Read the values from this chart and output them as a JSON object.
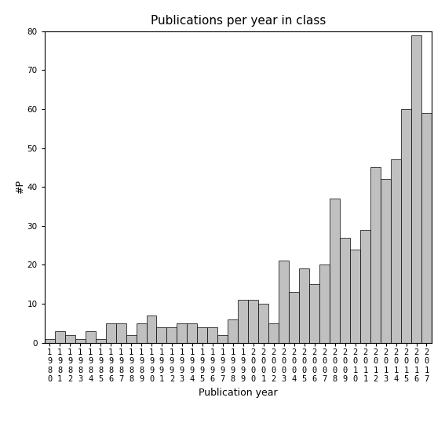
{
  "title": "Publications per year in class",
  "xlabel": "Publication year",
  "ylabel": "#P",
  "years": [
    "1980",
    "1981",
    "1982",
    "1983",
    "1984",
    "1985",
    "1986",
    "1987",
    "1988",
    "1989",
    "1990",
    "1991",
    "1992",
    "1993",
    "1994",
    "1995",
    "1996",
    "1997",
    "1998",
    "1999",
    "2000",
    "2001",
    "2002",
    "2003",
    "2004",
    "2005",
    "2006",
    "2007",
    "2008",
    "2009",
    "2010",
    "2011",
    "2012",
    "2013",
    "2014",
    "2015",
    "2016",
    "2017"
  ],
  "values": [
    1,
    3,
    2,
    1,
    3,
    1,
    5,
    5,
    2,
    5,
    7,
    4,
    4,
    5,
    5,
    4,
    4,
    2,
    6,
    11,
    11,
    10,
    5,
    21,
    13,
    19,
    15,
    20,
    37,
    27,
    24,
    29,
    45,
    42,
    47,
    60,
    79,
    59
  ],
  "bar_color": "#c0c0c0",
  "bar_edgecolor": "#000000",
  "ylim": [
    0,
    80
  ],
  "yticks": [
    0,
    10,
    20,
    30,
    40,
    50,
    60,
    70,
    80
  ],
  "title_fontsize": 11,
  "axis_label_fontsize": 9,
  "tick_label_fontsize": 7.5
}
